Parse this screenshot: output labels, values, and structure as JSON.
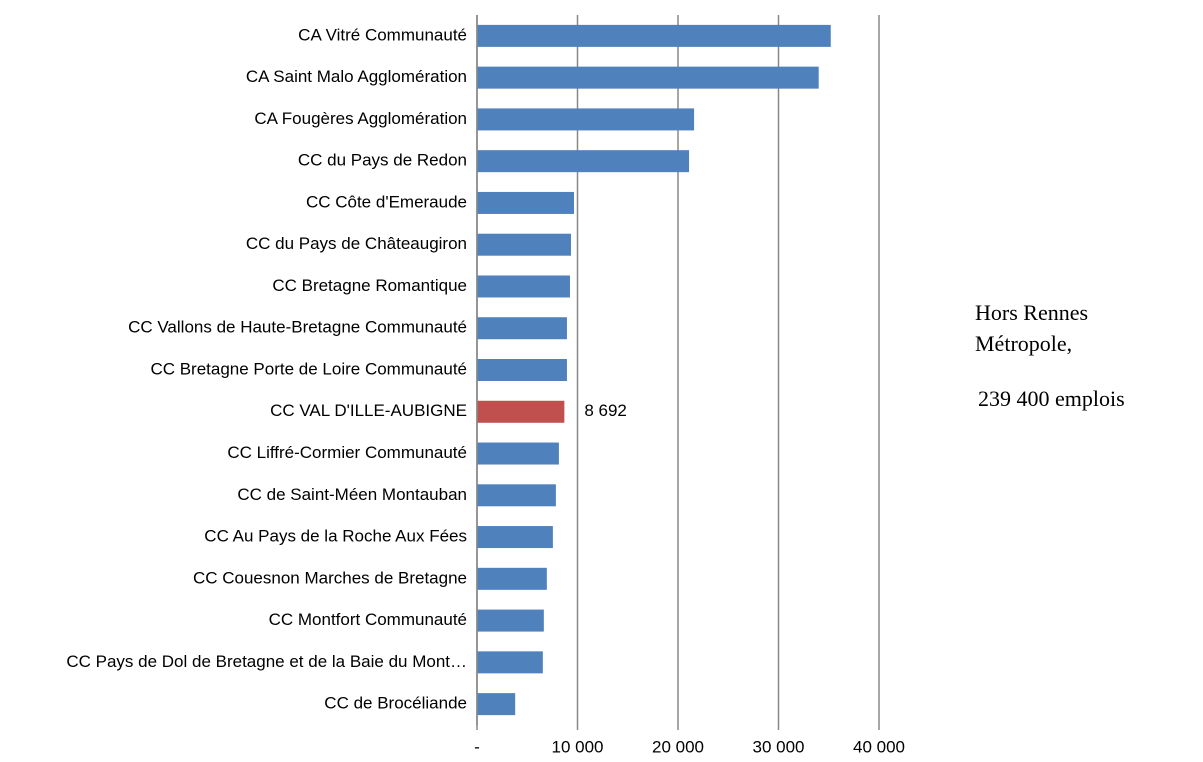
{
  "chart_data": {
    "type": "barh",
    "categories": [
      "CA Vitré Communauté",
      "CA  Saint Malo Agglomération",
      "CA Fougères Agglomération",
      "CC du Pays de Redon",
      "CC Côte d'Emeraude",
      "CC du Pays de Châteaugiron",
      "CC Bretagne Romantique",
      "CC Vallons de Haute-Bretagne Communauté",
      "CC Bretagne Porte de Loire Communauté",
      "CC VAL D'ILLE-AUBIGNE",
      "CC Liffré-Cormier Communauté",
      "CC de Saint-Méen Montauban",
      "CC Au Pays de la Roche Aux Fées",
      "CC Couesnon Marches de Bretagne",
      "CC Montfort Communauté",
      "CC Pays de Dol de Bretagne et de la Baie du Mont…",
      "CC de Brocéliande"
    ],
    "values": [
      35200,
      34000,
      21600,
      21100,
      9650,
      9350,
      9250,
      8950,
      8950,
      8692,
      8150,
      7850,
      7550,
      6950,
      6650,
      6550,
      3800
    ],
    "value_labels": [
      null,
      null,
      null,
      null,
      null,
      null,
      null,
      null,
      null,
      "8 692",
      null,
      null,
      null,
      null,
      null,
      null,
      null
    ],
    "colors": [
      "#4f81bd",
      "#4f81bd",
      "#4f81bd",
      "#4f81bd",
      "#4f81bd",
      "#4f81bd",
      "#4f81bd",
      "#4f81bd",
      "#4f81bd",
      "#c0504d",
      "#4f81bd",
      "#4f81bd",
      "#4f81bd",
      "#4f81bd",
      "#4f81bd",
      "#4f81bd",
      "#4f81bd"
    ],
    "xlim": [
      0,
      40000
    ],
    "xticks": [
      {
        "value": 0,
        "label": "-"
      },
      {
        "value": 10000,
        "label": "10 000"
      },
      {
        "value": 20000,
        "label": "20 000"
      },
      {
        "value": 30000,
        "label": "30 000"
      },
      {
        "value": 40000,
        "label": "40 000"
      }
    ],
    "grid": true,
    "annotation": [
      "Hors Rennes",
      "Métropole,",
      "239 400 emplois"
    ]
  }
}
